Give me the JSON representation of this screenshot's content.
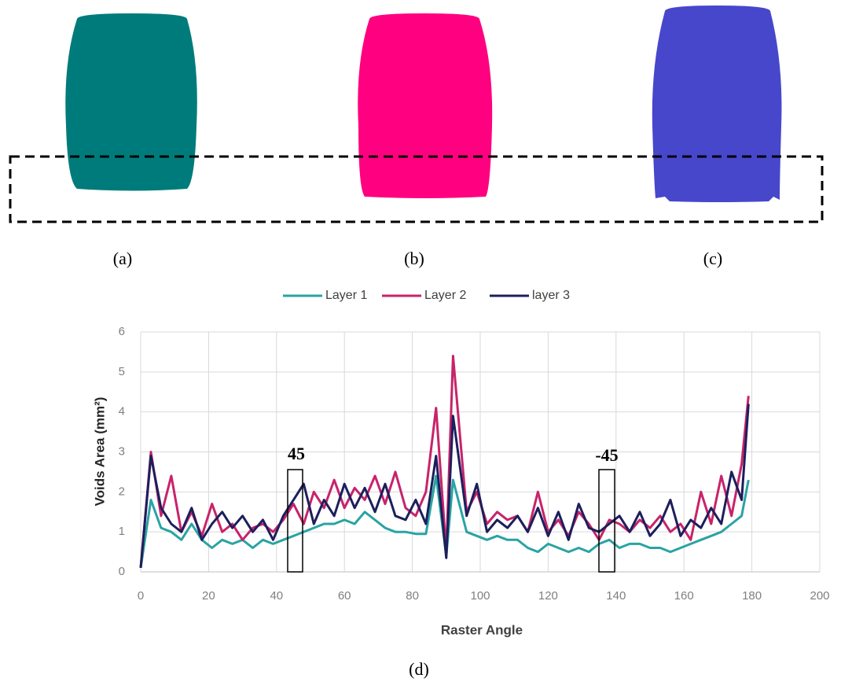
{
  "chart_data": {
    "type": "line",
    "xlabel": "Raster Angle",
    "ylabel": "Voids Area (mm²)",
    "panel_labels": [
      "(a)",
      "(b)",
      "(c)",
      "(d)"
    ],
    "annotations": [
      "45",
      "-45"
    ],
    "x": [
      0,
      3,
      6,
      9,
      12,
      15,
      18,
      21,
      24,
      27,
      30,
      33,
      36,
      39,
      42,
      45,
      48,
      51,
      54,
      57,
      60,
      63,
      66,
      69,
      72,
      75,
      78,
      81,
      84,
      87,
      90,
      92,
      96,
      99,
      102,
      105,
      108,
      111,
      114,
      117,
      120,
      123,
      126,
      129,
      132,
      135,
      138,
      141,
      144,
      147,
      150,
      153,
      156,
      159,
      162,
      165,
      168,
      171,
      174,
      177,
      179
    ],
    "series": [
      {
        "name": "Layer 1",
        "color": "#2aa3a3",
        "values": [
          0.1,
          1.8,
          1.1,
          1.0,
          0.8,
          1.2,
          0.8,
          0.6,
          0.8,
          0.7,
          0.8,
          0.6,
          0.8,
          0.7,
          0.8,
          0.9,
          1.0,
          1.1,
          1.2,
          1.2,
          1.3,
          1.2,
          1.5,
          1.3,
          1.1,
          1.0,
          1.0,
          0.95,
          0.95,
          2.4,
          0.4,
          2.3,
          1.0,
          0.9,
          0.8,
          0.9,
          0.8,
          0.8,
          0.6,
          0.5,
          0.7,
          0.6,
          0.5,
          0.6,
          0.5,
          0.7,
          0.8,
          0.6,
          0.7,
          0.7,
          0.6,
          0.6,
          0.5,
          0.6,
          0.7,
          0.8,
          0.9,
          1.0,
          1.2,
          1.4,
          2.3
        ]
      },
      {
        "name": "Layer 2",
        "color": "#c8236a",
        "values": [
          0.1,
          3.0,
          1.4,
          2.4,
          1.0,
          1.5,
          0.9,
          1.7,
          1.0,
          1.2,
          0.8,
          1.1,
          1.2,
          1.0,
          1.3,
          1.7,
          1.2,
          2.0,
          1.6,
          2.3,
          1.6,
          2.1,
          1.8,
          2.4,
          1.7,
          2.5,
          1.6,
          1.4,
          2.0,
          4.1,
          0.5,
          5.4,
          1.5,
          2.0,
          1.2,
          1.5,
          1.3,
          1.4,
          1.0,
          2.0,
          1.0,
          1.3,
          0.9,
          1.5,
          1.2,
          0.8,
          1.3,
          1.2,
          1.0,
          1.3,
          1.1,
          1.4,
          1.0,
          1.2,
          0.8,
          2.0,
          1.2,
          2.4,
          1.4,
          2.7,
          4.4
        ]
      },
      {
        "name": "layer 3",
        "color": "#1c1f5c",
        "values": [
          0.1,
          2.9,
          1.6,
          1.2,
          1.0,
          1.6,
          0.8,
          1.2,
          1.5,
          1.1,
          1.4,
          1.0,
          1.3,
          0.8,
          1.4,
          1.8,
          2.2,
          1.2,
          1.8,
          1.4,
          2.2,
          1.6,
          2.1,
          1.5,
          2.2,
          1.4,
          1.3,
          1.8,
          1.2,
          2.9,
          0.35,
          3.9,
          1.4,
          2.2,
          1.0,
          1.3,
          1.1,
          1.4,
          1.0,
          1.6,
          0.9,
          1.5,
          0.8,
          1.7,
          1.1,
          1.0,
          1.2,
          1.4,
          1.0,
          1.5,
          0.9,
          1.2,
          1.8,
          0.9,
          1.3,
          1.1,
          1.6,
          1.2,
          2.5,
          1.8,
          4.2
        ]
      }
    ],
    "xlim": [
      0,
      200
    ],
    "xticks": [
      0,
      20,
      40,
      60,
      80,
      100,
      120,
      140,
      160,
      180,
      200
    ],
    "ylim": [
      0,
      6
    ],
    "yticks": [
      0,
      1,
      2,
      3,
      4,
      5,
      6
    ],
    "grid": true
  }
}
